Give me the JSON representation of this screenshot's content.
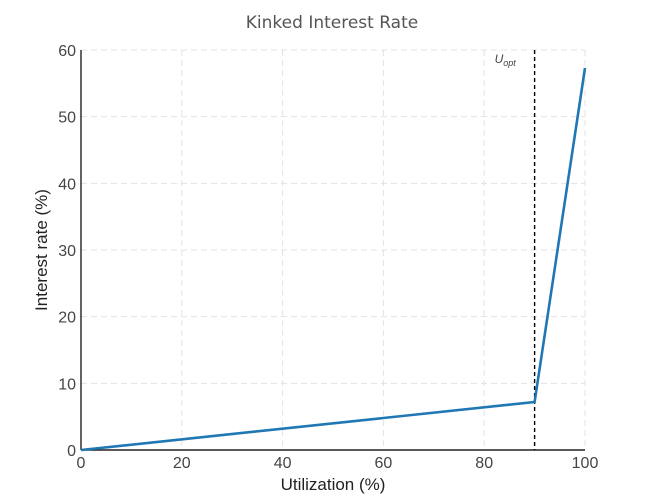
{
  "chart_data": {
    "type": "line",
    "title": "Kinked Interest Rate",
    "xlabel": "Utilization (%)",
    "ylabel": "Interest rate (%)",
    "xlim": [
      0,
      100
    ],
    "ylim": [
      0,
      60
    ],
    "xticks": [
      "0",
      "20",
      "40",
      "60",
      "80",
      "100"
    ],
    "yticks": [
      "0",
      "10",
      "20",
      "30",
      "40",
      "50",
      "60"
    ],
    "grid": true,
    "legend": "none",
    "series": [
      {
        "color": "#1f77b4",
        "x": [
          0,
          90,
          100
        ],
        "y": [
          0,
          7.2,
          57.3
        ]
      }
    ],
    "annotations": [
      {
        "label_main": "U",
        "label_sub": "opt",
        "x": 90,
        "style": "vertical dashed line",
        "color": "#000000"
      }
    ]
  }
}
